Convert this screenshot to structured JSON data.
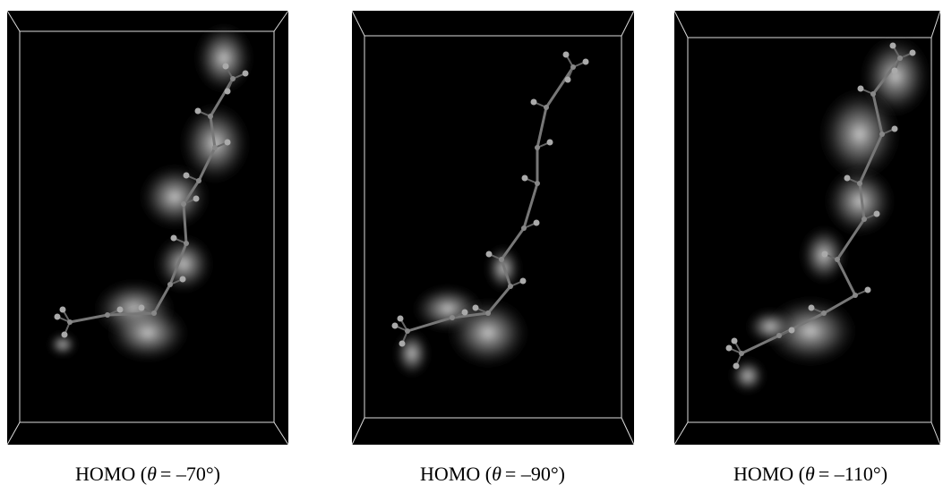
{
  "panels": [
    {
      "caption_prefix": "HOMO (",
      "caption_symbol": "θ",
      "caption_suffix": "= –70°)"
    },
    {
      "caption_prefix": "HOMO (",
      "caption_symbol": "θ",
      "caption_suffix": "= –90°)"
    },
    {
      "caption_prefix": "HOMO (",
      "caption_symbol": "θ",
      "caption_suffix": "= –110°)"
    }
  ]
}
